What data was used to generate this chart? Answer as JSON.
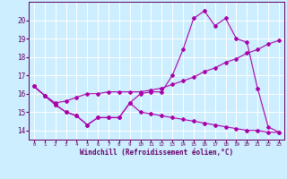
{
  "xlabel": "Windchill (Refroidissement éolien,°C)",
  "background_color": "#cceeff",
  "grid_color": "#ffffff",
  "line_color": "#aa00aa",
  "x": [
    0,
    1,
    2,
    3,
    4,
    5,
    6,
    7,
    8,
    9,
    10,
    11,
    12,
    13,
    14,
    15,
    16,
    17,
    18,
    19,
    20,
    21,
    22,
    23
  ],
  "line1": [
    16.4,
    15.9,
    15.4,
    15.0,
    14.8,
    14.3,
    14.7,
    14.7,
    14.7,
    15.5,
    15.0,
    14.9,
    14.8,
    14.7,
    14.6,
    14.5,
    14.4,
    14.3,
    14.2,
    14.1,
    14.0,
    14.0,
    13.9,
    13.9
  ],
  "line2": [
    16.4,
    15.9,
    15.5,
    15.6,
    15.8,
    16.0,
    16.0,
    16.1,
    16.1,
    16.1,
    16.1,
    16.2,
    16.3,
    16.5,
    16.7,
    16.9,
    17.2,
    17.4,
    17.7,
    17.9,
    18.2,
    18.4,
    18.7,
    18.9
  ],
  "line3": [
    16.4,
    15.9,
    15.4,
    15.0,
    14.8,
    14.3,
    14.7,
    14.7,
    14.7,
    15.5,
    16.0,
    16.1,
    16.1,
    17.0,
    18.4,
    20.1,
    20.5,
    19.7,
    20.1,
    19.0,
    18.8,
    16.3,
    14.2,
    13.9
  ],
  "ylim": [
    13.5,
    21.0
  ],
  "yticks": [
    14,
    15,
    16,
    17,
    18,
    19,
    20
  ],
  "xlim": [
    -0.5,
    23.5
  ],
  "xticks": [
    0,
    1,
    2,
    3,
    4,
    5,
    6,
    7,
    8,
    9,
    10,
    11,
    12,
    13,
    14,
    15,
    16,
    17,
    18,
    19,
    20,
    21,
    22,
    23
  ],
  "xtick_labels": [
    "0",
    "1",
    "2",
    "3",
    "4",
    "5",
    "6",
    "7",
    "8",
    "9",
    "10",
    "11",
    "12",
    "13",
    "14",
    "15",
    "16",
    "17",
    "18",
    "19",
    "20",
    "21",
    "22",
    "23"
  ],
  "ytick_labels": [
    "14",
    "15",
    "16",
    "17",
    "18",
    "19",
    "20"
  ],
  "tick_color": "#660066",
  "xlabel_fontsize": 5.5,
  "xtick_fontsize": 4.2,
  "ytick_fontsize": 5.5,
  "linewidth": 0.8,
  "markersize": 2.0
}
